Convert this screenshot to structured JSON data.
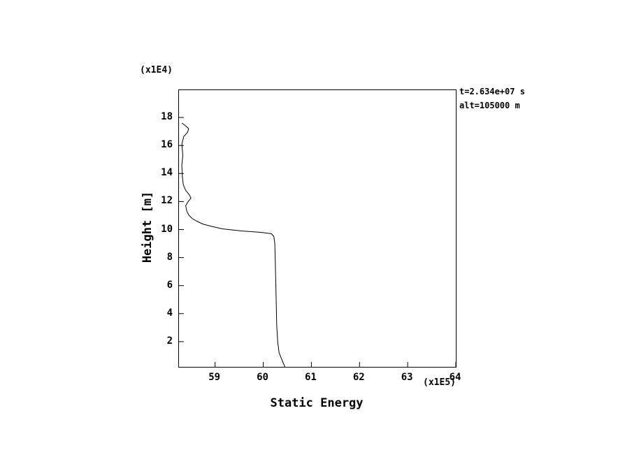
{
  "figure": {
    "x_axis_title": "Static Energy",
    "y_axis_title": "Height [m]",
    "x_scale_label": "(x1E5)",
    "y_scale_label": "(x1E4)",
    "annotation_time": "t=2.634e+07 s",
    "annotation_alt": "alt=105000 m"
  },
  "chart_data": {
    "type": "line",
    "title": "",
    "xlabel": "Static Energy",
    "ylabel": "Height [m]",
    "x_units_multiplier": "1E5",
    "y_units_multiplier": "1E4",
    "xlim": [
      58.25,
      64
    ],
    "ylim": [
      0.2,
      19.95
    ],
    "xticks": [
      59,
      60,
      61,
      62,
      63,
      64
    ],
    "yticks": [
      2,
      4,
      6,
      8,
      10,
      12,
      14,
      16,
      18
    ],
    "grid": false,
    "legend": "none",
    "annotations": [
      "t=2.634e+07 s",
      "alt=105000 m"
    ],
    "series": [
      {
        "name": "static-energy-profile",
        "color": "#000000",
        "points": [
          [
            60.45,
            0.2
          ],
          [
            60.4,
            0.6
          ],
          [
            60.33,
            1.2
          ],
          [
            60.3,
            2.0
          ],
          [
            60.28,
            3.2
          ],
          [
            60.27,
            4.8
          ],
          [
            60.26,
            6.4
          ],
          [
            60.25,
            7.8
          ],
          [
            60.24,
            9.0
          ],
          [
            60.22,
            9.5
          ],
          [
            60.17,
            9.7
          ],
          [
            59.95,
            9.8
          ],
          [
            59.55,
            9.9
          ],
          [
            59.15,
            10.05
          ],
          [
            58.9,
            10.25
          ],
          [
            58.74,
            10.4
          ],
          [
            58.62,
            10.6
          ],
          [
            58.52,
            10.8
          ],
          [
            58.45,
            11.05
          ],
          [
            58.41,
            11.35
          ],
          [
            58.39,
            11.7
          ],
          [
            58.44,
            12.0
          ],
          [
            58.5,
            12.25
          ],
          [
            58.46,
            12.5
          ],
          [
            58.39,
            12.8
          ],
          [
            58.34,
            13.2
          ],
          [
            58.32,
            13.8
          ],
          [
            58.31,
            14.6
          ],
          [
            58.33,
            15.3
          ],
          [
            58.31,
            16.1
          ],
          [
            58.35,
            16.65
          ],
          [
            58.43,
            16.95
          ],
          [
            58.45,
            17.2
          ],
          [
            58.37,
            17.45
          ],
          [
            58.31,
            17.6
          ]
        ]
      }
    ]
  }
}
